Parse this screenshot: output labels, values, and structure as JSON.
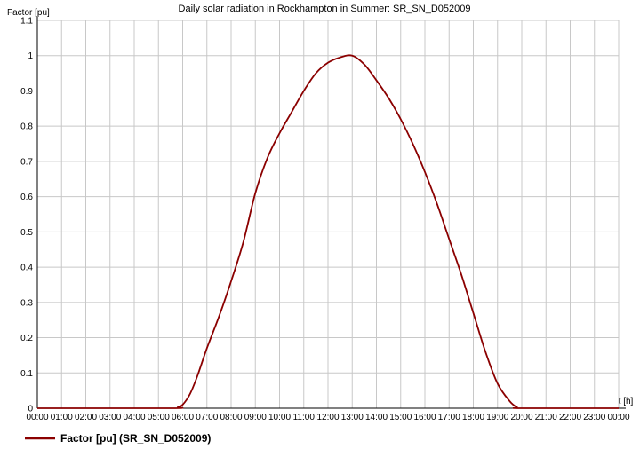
{
  "chart_data": {
    "type": "line",
    "title": "Daily solar radiation in Rockhampton in Summer: SR_SN_D052009",
    "ylabel": "Factor [pu]",
    "xlabel": "t [h]",
    "ylim": [
      0,
      1.1
    ],
    "xlim": [
      0,
      24
    ],
    "yticks": [
      "0",
      "0.1",
      "0.2",
      "0.3",
      "0.4",
      "0.5",
      "0.6",
      "0.7",
      "0.8",
      "0.9",
      "1",
      "1.1"
    ],
    "xticks": [
      "00:00",
      "01:00",
      "02:00",
      "03:00",
      "04:00",
      "05:00",
      "06:00",
      "07:00",
      "08:00",
      "09:00",
      "10:00",
      "11:00",
      "12:00",
      "13:00",
      "14:00",
      "15:00",
      "16:00",
      "17:00",
      "18:00",
      "19:00",
      "20:00",
      "21:00",
      "22:00",
      "23:00",
      "00:00"
    ],
    "grid": true,
    "legend_position": "bottom-left",
    "series": [
      {
        "name": "Factor [pu] (SR_SN_D052009)",
        "color": "#8b0000",
        "x": [
          0,
          5.5,
          5.8,
          6.0,
          6.3,
          6.6,
          7.0,
          7.5,
          8.0,
          8.5,
          9.0,
          9.5,
          10.0,
          10.5,
          11.0,
          11.5,
          12.0,
          12.5,
          13.0,
          13.5,
          14.0,
          14.5,
          15.0,
          15.5,
          16.0,
          16.5,
          17.0,
          17.5,
          18.0,
          18.5,
          19.0,
          19.5,
          19.8,
          20.0,
          24
        ],
        "y": [
          0,
          0,
          0.003,
          0.01,
          0.04,
          0.09,
          0.17,
          0.26,
          0.36,
          0.47,
          0.61,
          0.71,
          0.78,
          0.84,
          0.9,
          0.95,
          0.98,
          0.995,
          1.0,
          0.975,
          0.93,
          0.88,
          0.82,
          0.75,
          0.67,
          0.58,
          0.48,
          0.38,
          0.27,
          0.16,
          0.07,
          0.02,
          0.003,
          0,
          0
        ]
      }
    ]
  }
}
